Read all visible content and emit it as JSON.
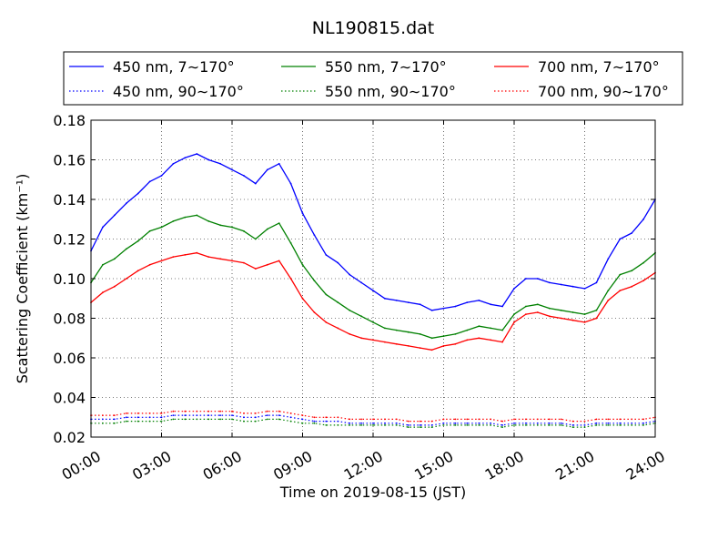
{
  "chart_data": {
    "type": "line",
    "title": "NL190815.dat",
    "xlabel": "Time on 2019-08-15 (JST)",
    "ylabel": "Scattering Coefficient (km⁻¹)",
    "xlim": [
      "00:00",
      "24:00"
    ],
    "xticks": [
      "00:00",
      "03:00",
      "06:00",
      "09:00",
      "12:00",
      "15:00",
      "18:00",
      "21:00",
      "24:00"
    ],
    "ylim": [
      0.02,
      0.18
    ],
    "yticks": [
      "0.02",
      "0.04",
      "0.06",
      "0.08",
      "0.10",
      "0.12",
      "0.14",
      "0.16",
      "0.18"
    ],
    "grid": true,
    "legend_position": "top",
    "x": [
      "00:00",
      "00:30",
      "01:00",
      "01:30",
      "02:00",
      "02:30",
      "03:00",
      "03:30",
      "04:00",
      "04:30",
      "05:00",
      "05:30",
      "06:00",
      "06:30",
      "07:00",
      "07:30",
      "08:00",
      "08:30",
      "09:00",
      "09:30",
      "10:00",
      "10:30",
      "11:00",
      "11:30",
      "12:00",
      "12:30",
      "13:00",
      "13:30",
      "14:00",
      "14:30",
      "15:00",
      "15:30",
      "16:00",
      "16:30",
      "17:00",
      "17:30",
      "18:00",
      "18:30",
      "19:00",
      "19:30",
      "20:00",
      "20:30",
      "21:00",
      "21:30",
      "22:00",
      "22:30",
      "23:00",
      "23:30",
      "24:00"
    ],
    "series": [
      {
        "name": "450 nm, 7∼170°",
        "color": "#0000ff",
        "dash": "solid",
        "values": [
          0.114,
          0.126,
          0.132,
          0.138,
          0.143,
          0.149,
          0.152,
          0.158,
          0.161,
          0.163,
          0.16,
          0.158,
          0.155,
          0.152,
          0.148,
          0.155,
          0.158,
          0.148,
          0.133,
          0.122,
          0.112,
          0.108,
          0.102,
          0.098,
          0.094,
          0.09,
          0.089,
          0.088,
          0.087,
          0.084,
          0.085,
          0.086,
          0.088,
          0.089,
          0.087,
          0.086,
          0.095,
          0.1,
          0.1,
          0.098,
          0.097,
          0.096,
          0.095,
          0.098,
          0.11,
          0.12,
          0.123,
          0.13,
          0.14
        ]
      },
      {
        "name": "450 nm, 90∼170°",
        "color": "#0000ff",
        "dash": "dotted",
        "values": [
          0.029,
          0.029,
          0.029,
          0.03,
          0.03,
          0.03,
          0.03,
          0.031,
          0.031,
          0.031,
          0.031,
          0.031,
          0.031,
          0.03,
          0.03,
          0.031,
          0.031,
          0.03,
          0.029,
          0.028,
          0.028,
          0.028,
          0.027,
          0.027,
          0.027,
          0.027,
          0.027,
          0.026,
          0.026,
          0.026,
          0.027,
          0.027,
          0.027,
          0.027,
          0.027,
          0.026,
          0.027,
          0.027,
          0.027,
          0.027,
          0.027,
          0.026,
          0.026,
          0.027,
          0.027,
          0.027,
          0.027,
          0.027,
          0.028
        ]
      },
      {
        "name": "550 nm, 7∼170°",
        "color": "#008000",
        "dash": "solid",
        "values": [
          0.098,
          0.107,
          0.11,
          0.115,
          0.119,
          0.124,
          0.126,
          0.129,
          0.131,
          0.132,
          0.129,
          0.127,
          0.126,
          0.124,
          0.12,
          0.125,
          0.128,
          0.118,
          0.107,
          0.099,
          0.092,
          0.088,
          0.084,
          0.081,
          0.078,
          0.075,
          0.074,
          0.073,
          0.072,
          0.07,
          0.071,
          0.072,
          0.074,
          0.076,
          0.075,
          0.074,
          0.082,
          0.086,
          0.087,
          0.085,
          0.084,
          0.083,
          0.082,
          0.084,
          0.094,
          0.102,
          0.104,
          0.108,
          0.113
        ]
      },
      {
        "name": "550 nm, 90∼170°",
        "color": "#008000",
        "dash": "dotted",
        "values": [
          0.027,
          0.027,
          0.027,
          0.028,
          0.028,
          0.028,
          0.028,
          0.029,
          0.029,
          0.029,
          0.029,
          0.029,
          0.029,
          0.028,
          0.028,
          0.029,
          0.029,
          0.028,
          0.027,
          0.027,
          0.026,
          0.026,
          0.026,
          0.026,
          0.026,
          0.026,
          0.026,
          0.025,
          0.025,
          0.025,
          0.026,
          0.026,
          0.026,
          0.026,
          0.026,
          0.025,
          0.026,
          0.026,
          0.026,
          0.026,
          0.026,
          0.025,
          0.025,
          0.026,
          0.026,
          0.026,
          0.026,
          0.026,
          0.027
        ]
      },
      {
        "name": "700 nm, 7∼170°",
        "color": "#ff0000",
        "dash": "solid",
        "values": [
          0.088,
          0.093,
          0.096,
          0.1,
          0.104,
          0.107,
          0.109,
          0.111,
          0.112,
          0.113,
          0.111,
          0.11,
          0.109,
          0.108,
          0.105,
          0.107,
          0.109,
          0.1,
          0.09,
          0.083,
          0.078,
          0.075,
          0.072,
          0.07,
          0.069,
          0.068,
          0.067,
          0.066,
          0.065,
          0.064,
          0.066,
          0.067,
          0.069,
          0.07,
          0.069,
          0.068,
          0.078,
          0.082,
          0.083,
          0.081,
          0.08,
          0.079,
          0.078,
          0.08,
          0.089,
          0.094,
          0.096,
          0.099,
          0.103
        ]
      },
      {
        "name": "700 nm, 90∼170°",
        "color": "#ff0000",
        "dash": "dotted",
        "values": [
          0.031,
          0.031,
          0.031,
          0.032,
          0.032,
          0.032,
          0.032,
          0.033,
          0.033,
          0.033,
          0.033,
          0.033,
          0.033,
          0.032,
          0.032,
          0.033,
          0.033,
          0.032,
          0.031,
          0.03,
          0.03,
          0.03,
          0.029,
          0.029,
          0.029,
          0.029,
          0.029,
          0.028,
          0.028,
          0.028,
          0.029,
          0.029,
          0.029,
          0.029,
          0.029,
          0.028,
          0.029,
          0.029,
          0.029,
          0.029,
          0.029,
          0.028,
          0.028,
          0.029,
          0.029,
          0.029,
          0.029,
          0.029,
          0.03
        ]
      }
    ]
  }
}
